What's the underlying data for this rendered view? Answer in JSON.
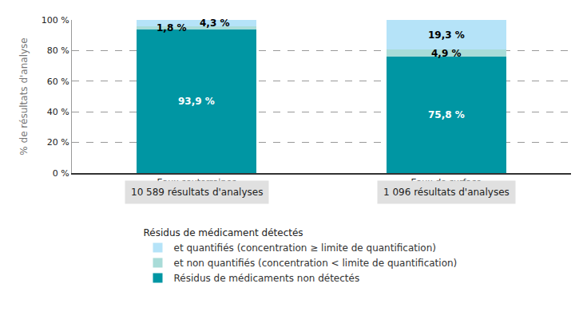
{
  "chart_data": {
    "type": "bar",
    "stacked": true,
    "data_labels": true,
    "grid": true,
    "legend": "bottom",
    "y_label": "% de résultats d'analyse",
    "legend_title": "Résidus de médicament détectés",
    "categories": [
      "Eaux souterraines",
      "Eaux de surface"
    ],
    "annotations": [
      {
        "text": "10 589 résultats d'analyses",
        "category": "Eaux souterraines"
      },
      {
        "text": "1 096 résultats d'analyses",
        "category": "Eaux de surface"
      }
    ],
    "series": [
      {
        "name": "Résidus de médicaments non détectés",
        "color": "#0096a3",
        "values": [
          93.9,
          75.8
        ],
        "value_labels": [
          "93,9 %",
          "75,8 %"
        ]
      },
      {
        "name": "et non quantifiés (concentration < limite de quantification)",
        "color": "#a9dcd8",
        "values": [
          1.8,
          4.9
        ],
        "value_labels": [
          "1,8 %",
          "4,9 %"
        ]
      },
      {
        "name": "et quantifiés (concentration ≥ limite de quantification)",
        "color": "#b5e3f8",
        "values": [
          4.3,
          19.3
        ],
        "value_labels": [
          "4,3 %",
          "19,3 %"
        ]
      }
    ],
    "ylim": [
      0,
      100
    ],
    "yticks": [
      {
        "value": 0,
        "label": "0 %"
      },
      {
        "value": 20,
        "label": "20 %"
      },
      {
        "value": 40,
        "label": "40 %"
      },
      {
        "value": 60,
        "label": "60 %"
      },
      {
        "value": 80,
        "label": "80 %"
      },
      {
        "value": 100,
        "label": "100 %"
      }
    ]
  }
}
